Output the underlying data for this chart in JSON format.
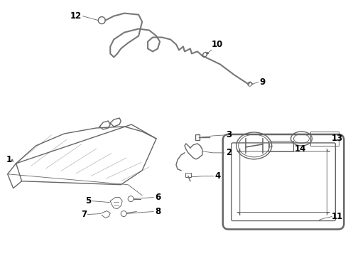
{
  "bg_color": "#ffffff",
  "line_color": "#666666",
  "text_color": "#000000",
  "fig_width": 4.9,
  "fig_height": 3.6,
  "dpi": 100,
  "wire_color": "#777777",
  "part_color": "#888888"
}
